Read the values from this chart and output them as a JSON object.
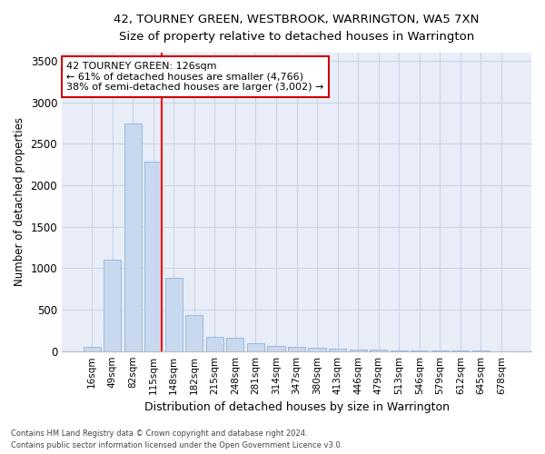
{
  "title": "42, TOURNEY GREEN, WESTBROOK, WARRINGTON, WA5 7XN",
  "subtitle": "Size of property relative to detached houses in Warrington",
  "xlabel": "Distribution of detached houses by size in Warrington",
  "ylabel": "Number of detached properties",
  "categories": [
    "16sqm",
    "49sqm",
    "82sqm",
    "115sqm",
    "148sqm",
    "182sqm",
    "215sqm",
    "248sqm",
    "281sqm",
    "314sqm",
    "347sqm",
    "380sqm",
    "413sqm",
    "446sqm",
    "479sqm",
    "513sqm",
    "546sqm",
    "579sqm",
    "612sqm",
    "645sqm",
    "678sqm"
  ],
  "values": [
    50,
    1100,
    2740,
    2290,
    880,
    430,
    170,
    160,
    90,
    65,
    50,
    45,
    30,
    20,
    15,
    10,
    8,
    5,
    3,
    2,
    1
  ],
  "bar_color": "#c8d8ef",
  "bar_edge_color": "#8db4d8",
  "property_size": "126sqm",
  "property_name": "42 TOURNEY GREEN",
  "pct_smaller": 61,
  "n_smaller": 4766,
  "pct_larger_semi": 38,
  "n_larger_semi": 3002,
  "annotation_box_color": "#ffffff",
  "annotation_box_edge": "#cc0000",
  "ylim": [
    0,
    3600
  ],
  "yticks": [
    0,
    500,
    1000,
    1500,
    2000,
    2500,
    3000,
    3500
  ],
  "grid_color": "#c8d4e8",
  "bg_color": "#e8edf8",
  "footnote1": "Contains HM Land Registry data © Crown copyright and database right 2024.",
  "footnote2": "Contains public sector information licensed under the Open Government Licence v3.0."
}
